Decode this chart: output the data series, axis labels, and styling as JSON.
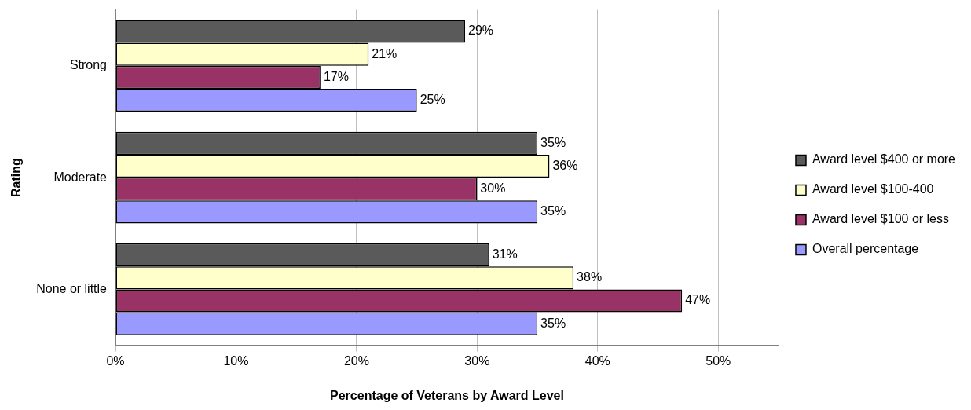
{
  "chart_data": {
    "type": "bar",
    "orientation": "horizontal",
    "xlabel": "Percentage of Veterans by Award Level",
    "ylabel": "Rating",
    "categories": [
      "Strong",
      "Moderate",
      "None or little"
    ],
    "series": [
      {
        "name": "Award level $400 or more",
        "color": "#5a5a5a",
        "values": [
          29,
          35,
          31
        ],
        "value_labels": [
          "29%",
          "35%",
          "31%"
        ]
      },
      {
        "name": "Award level $100-400",
        "color": "#ffffcc",
        "values": [
          21,
          36,
          38
        ],
        "value_labels": [
          "21%",
          "36%",
          "38%"
        ]
      },
      {
        "name": "Award level $100 or less",
        "color": "#993366",
        "values": [
          17,
          30,
          47
        ],
        "value_labels": [
          "17%",
          "30%",
          "47%"
        ]
      },
      {
        "name": "Overall percentage",
        "color": "#9999ff",
        "values": [
          25,
          35,
          35
        ],
        "value_labels": [
          "25%",
          "35%",
          "35%"
        ]
      }
    ],
    "xlim": [
      0,
      55
    ],
    "xticks": [
      {
        "value": 0,
        "label": "0%"
      },
      {
        "value": 10,
        "label": "10%"
      },
      {
        "value": 20,
        "label": "20%"
      },
      {
        "value": 30,
        "label": "30%"
      },
      {
        "value": 40,
        "label": "40%"
      },
      {
        "value": 50,
        "label": "50%"
      }
    ],
    "grid": "x",
    "legend": "right"
  }
}
